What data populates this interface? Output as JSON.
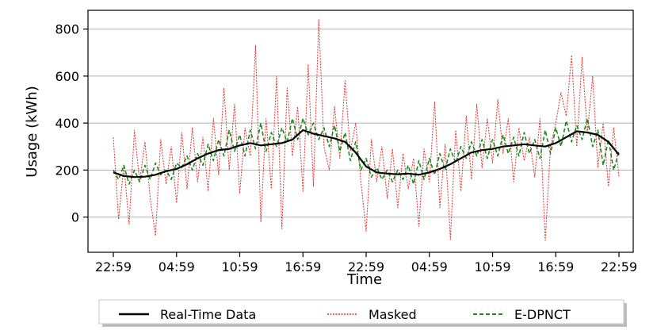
{
  "chart_data": {
    "type": "line",
    "xlabel": "Time",
    "ylabel": "Usage (kWh)",
    "ylim": [
      -150,
      880
    ],
    "y_ticks": [
      0,
      200,
      400,
      600,
      800
    ],
    "x_tick_labels": [
      "22:59",
      "04:59",
      "10:59",
      "16:59",
      "22:59",
      "04:59",
      "10:59",
      "16:59",
      "22:59"
    ],
    "x_range_hours": [
      0,
      48
    ],
    "x_tick_hours": [
      0,
      6,
      12,
      18,
      24,
      30,
      36,
      42,
      48
    ],
    "grid": "horizontal",
    "legend_position": "bottom-center",
    "series": [
      {
        "name": "Real-Time Data",
        "color": "#000000",
        "style": "solid",
        "hourly_points": [
          [
            0,
            190
          ],
          [
            1,
            175
          ],
          [
            2,
            170
          ],
          [
            3,
            172
          ],
          [
            4,
            180
          ],
          [
            5,
            195
          ],
          [
            6,
            205
          ],
          [
            7,
            225
          ],
          [
            8,
            250
          ],
          [
            9,
            270
          ],
          [
            10,
            285
          ],
          [
            11,
            290
          ],
          [
            12,
            305
          ],
          [
            13,
            315
          ],
          [
            14,
            305
          ],
          [
            15,
            310
          ],
          [
            16,
            315
          ],
          [
            17,
            330
          ],
          [
            18,
            370
          ],
          [
            19,
            355
          ],
          [
            20,
            345
          ],
          [
            21,
            335
          ],
          [
            22,
            320
          ],
          [
            23,
            275
          ],
          [
            24,
            215
          ],
          [
            25,
            190
          ],
          [
            26,
            185
          ],
          [
            27,
            182
          ],
          [
            28,
            185
          ],
          [
            29,
            180
          ],
          [
            30,
            190
          ],
          [
            31,
            205
          ],
          [
            32,
            225
          ],
          [
            33,
            250
          ],
          [
            34,
            275
          ],
          [
            35,
            285
          ],
          [
            36,
            290
          ],
          [
            37,
            300
          ],
          [
            38,
            305
          ],
          [
            39,
            310
          ],
          [
            40,
            305
          ],
          [
            41,
            300
          ],
          [
            42,
            315
          ],
          [
            43,
            340
          ],
          [
            44,
            365
          ],
          [
            45,
            360
          ],
          [
            46,
            350
          ],
          [
            47,
            320
          ],
          [
            48,
            265
          ]
        ]
      },
      {
        "name": "Masked",
        "color": "#e8312f",
        "style": "dotted",
        "hourly_points": [
          [
            0,
            340
          ],
          [
            0.5,
            -10
          ],
          [
            1,
            220
          ],
          [
            1.5,
            -30
          ],
          [
            2,
            370
          ],
          [
            2.5,
            150
          ],
          [
            3,
            320
          ],
          [
            3.5,
            80
          ],
          [
            4,
            -80
          ],
          [
            4.5,
            330
          ],
          [
            5,
            140
          ],
          [
            5.5,
            300
          ],
          [
            6,
            60
          ],
          [
            6.5,
            360
          ],
          [
            7,
            120
          ],
          [
            7.5,
            380
          ],
          [
            8,
            150
          ],
          [
            8.5,
            340
          ],
          [
            9,
            110
          ],
          [
            9.5,
            420
          ],
          [
            10,
            180
          ],
          [
            10.5,
            550
          ],
          [
            11,
            200
          ],
          [
            11.5,
            480
          ],
          [
            12,
            100
          ],
          [
            12.5,
            380
          ],
          [
            13,
            260
          ],
          [
            13.5,
            730
          ],
          [
            14,
            -20
          ],
          [
            14.5,
            420
          ],
          [
            15,
            120
          ],
          [
            15.5,
            600
          ],
          [
            16,
            -50
          ],
          [
            16.5,
            550
          ],
          [
            17,
            260
          ],
          [
            17.5,
            470
          ],
          [
            18,
            110
          ],
          [
            18.5,
            650
          ],
          [
            19,
            130
          ],
          [
            19.5,
            840
          ],
          [
            20,
            300
          ],
          [
            20.5,
            200
          ],
          [
            21,
            470
          ],
          [
            21.5,
            250
          ],
          [
            22,
            580
          ],
          [
            22.5,
            280
          ],
          [
            23,
            400
          ],
          [
            23.5,
            150
          ],
          [
            24,
            -60
          ],
          [
            24.5,
            330
          ],
          [
            25,
            150
          ],
          [
            25.5,
            300
          ],
          [
            26,
            80
          ],
          [
            26.5,
            290
          ],
          [
            27,
            40
          ],
          [
            27.5,
            270
          ],
          [
            28,
            120
          ],
          [
            28.5,
            250
          ],
          [
            29,
            -40
          ],
          [
            29.5,
            290
          ],
          [
            30,
            150
          ],
          [
            30.5,
            490
          ],
          [
            31,
            40
          ],
          [
            31.5,
            310
          ],
          [
            32,
            -95
          ],
          [
            32.5,
            370
          ],
          [
            33,
            110
          ],
          [
            33.5,
            430
          ],
          [
            34,
            160
          ],
          [
            34.5,
            480
          ],
          [
            35,
            210
          ],
          [
            35.5,
            420
          ],
          [
            36,
            230
          ],
          [
            36.5,
            500
          ],
          [
            37,
            270
          ],
          [
            37.5,
            420
          ],
          [
            38,
            150
          ],
          [
            38.5,
            380
          ],
          [
            39,
            240
          ],
          [
            39.5,
            340
          ],
          [
            40,
            170
          ],
          [
            40.5,
            420
          ],
          [
            41,
            -100
          ],
          [
            41.5,
            300
          ],
          [
            42,
            400
          ],
          [
            42.5,
            530
          ],
          [
            43,
            430
          ],
          [
            43.5,
            690
          ],
          [
            44,
            300
          ],
          [
            44.5,
            680
          ],
          [
            45,
            360
          ],
          [
            45.5,
            600
          ],
          [
            46,
            210
          ],
          [
            46.5,
            400
          ],
          [
            47,
            130
          ],
          [
            47.5,
            380
          ],
          [
            48,
            170
          ]
        ]
      },
      {
        "name": "E-DPNCT",
        "color": "#1a8a1a",
        "style": "dashed",
        "hourly_points": [
          [
            0,
            200
          ],
          [
            0.5,
            160
          ],
          [
            1,
            220
          ],
          [
            1.5,
            140
          ],
          [
            2,
            200
          ],
          [
            2.5,
            150
          ],
          [
            3,
            220
          ],
          [
            3.5,
            160
          ],
          [
            4,
            230
          ],
          [
            4.5,
            180
          ],
          [
            5,
            200
          ],
          [
            5.5,
            160
          ],
          [
            6,
            230
          ],
          [
            6.5,
            210
          ],
          [
            7,
            260
          ],
          [
            7.5,
            200
          ],
          [
            8,
            270
          ],
          [
            8.5,
            220
          ],
          [
            9,
            310
          ],
          [
            9.5,
            240
          ],
          [
            10,
            330
          ],
          [
            10.5,
            260
          ],
          [
            11,
            370
          ],
          [
            11.5,
            280
          ],
          [
            12,
            350
          ],
          [
            12.5,
            260
          ],
          [
            13,
            370
          ],
          [
            13.5,
            290
          ],
          [
            14,
            400
          ],
          [
            14.5,
            280
          ],
          [
            15,
            360
          ],
          [
            15.5,
            300
          ],
          [
            16,
            380
          ],
          [
            16.5,
            320
          ],
          [
            17,
            420
          ],
          [
            17.5,
            330
          ],
          [
            18,
            420
          ],
          [
            18.5,
            350
          ],
          [
            19,
            400
          ],
          [
            19.5,
            330
          ],
          [
            20,
            380
          ],
          [
            20.5,
            300
          ],
          [
            21,
            390
          ],
          [
            21.5,
            280
          ],
          [
            22,
            360
          ],
          [
            22.5,
            240
          ],
          [
            23,
            320
          ],
          [
            23.5,
            200
          ],
          [
            24,
            250
          ],
          [
            24.5,
            170
          ],
          [
            25,
            210
          ],
          [
            25.5,
            160
          ],
          [
            26,
            200
          ],
          [
            26.5,
            150
          ],
          [
            27,
            200
          ],
          [
            27.5,
            160
          ],
          [
            28,
            220
          ],
          [
            28.5,
            140
          ],
          [
            29,
            240
          ],
          [
            29.5,
            160
          ],
          [
            30,
            250
          ],
          [
            30.5,
            180
          ],
          [
            31,
            270
          ],
          [
            31.5,
            200
          ],
          [
            32,
            290
          ],
          [
            32.5,
            230
          ],
          [
            33,
            300
          ],
          [
            33.5,
            250
          ],
          [
            34,
            320
          ],
          [
            34.5,
            260
          ],
          [
            35,
            330
          ],
          [
            35.5,
            250
          ],
          [
            36,
            330
          ],
          [
            36.5,
            260
          ],
          [
            37,
            350
          ],
          [
            37.5,
            270
          ],
          [
            38,
            340
          ],
          [
            38.5,
            260
          ],
          [
            39,
            360
          ],
          [
            39.5,
            270
          ],
          [
            40,
            330
          ],
          [
            40.5,
            250
          ],
          [
            41,
            370
          ],
          [
            41.5,
            270
          ],
          [
            42,
            380
          ],
          [
            42.5,
            300
          ],
          [
            43,
            410
          ],
          [
            43.5,
            320
          ],
          [
            44,
            390
          ],
          [
            44.5,
            330
          ],
          [
            45,
            420
          ],
          [
            45.5,
            300
          ],
          [
            46,
            370
          ],
          [
            46.5,
            220
          ],
          [
            47,
            330
          ],
          [
            47.5,
            200
          ],
          [
            48,
            280
          ]
        ]
      }
    ]
  }
}
